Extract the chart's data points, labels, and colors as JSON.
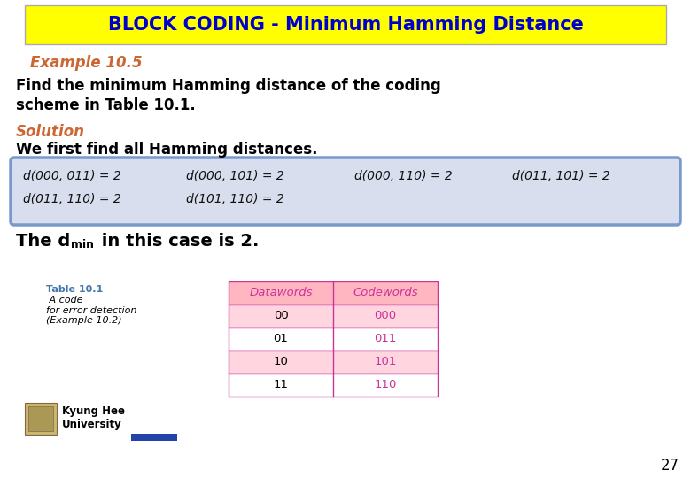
{
  "title": "BLOCK CODING - Minimum Hamming Distance",
  "title_bg": "#FFFF00",
  "title_color": "#0000CC",
  "example_label": "Example 10.5",
  "example_color": "#CC6633",
  "body_text1a": "Find the minimum Hamming distance of the coding",
  "body_text1b": "scheme in Table 10.1.",
  "solution_label": "Solution",
  "solution_color": "#CC6633",
  "body_text2": "We first find all Hamming distances.",
  "hamming_lines": [
    [
      "d(000, 011) = 2",
      "d(000, 101) = 2",
      "d(000, 110) = 2",
      "d(011, 101) = 2"
    ],
    [
      "d(011, 110) = 2",
      "d(101, 110) = 2",
      "",
      ""
    ]
  ],
  "hamming_box_bg": "#D8DEEE",
  "hamming_box_border": "#7799CC",
  "dmin_color": "#000000",
  "table_header_bg": "#FFB6C1",
  "table_row_bg": "#FFD6E0",
  "table_header_datawords": "Datawords",
  "table_header_codewords": "Codewords",
  "table_header_color": "#CC3399",
  "table_datawords": [
    "00",
    "01",
    "10",
    "11"
  ],
  "table_codewords": [
    "000",
    "011",
    "101",
    "110"
  ],
  "table_codeword_color": "#CC3399",
  "table_dataword_color": "#000000",
  "table_border_color": "#CC3399",
  "caption_label": "Table 10.1",
  "caption_label_color": "#4477AA",
  "caption_text": " A code\nfor error detection\n(Example 10.2)",
  "caption_text_color": "#000000",
  "univ_text": "Kyung Hee\nUniversity",
  "univ_color": "#000000",
  "blue_bar_color": "#2244AA",
  "page_number": "27",
  "bg_color": "#FFFFFF"
}
